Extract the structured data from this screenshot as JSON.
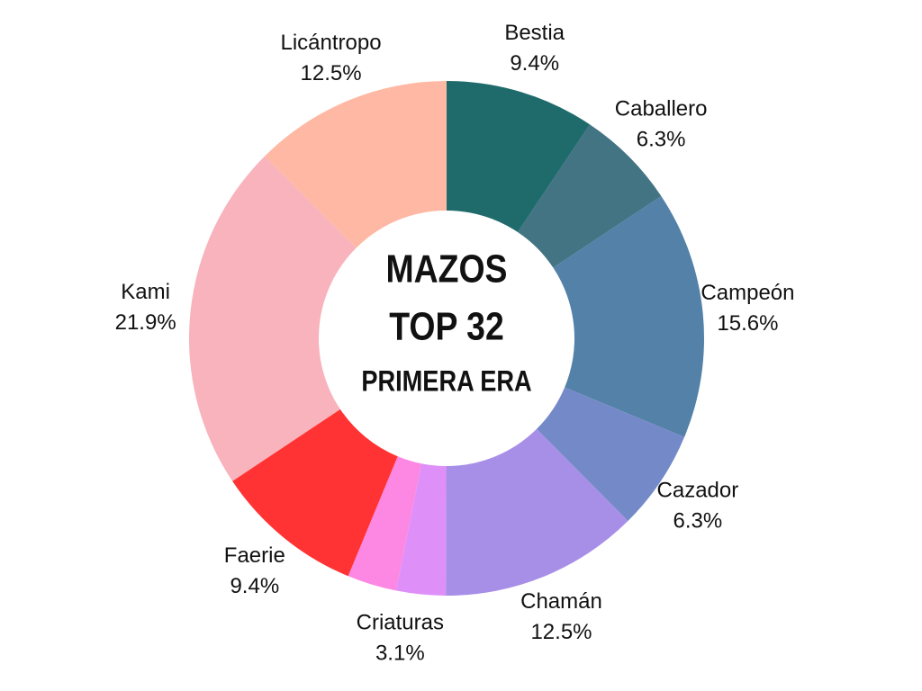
{
  "chart_data": {
    "type": "donut",
    "center_text": [
      "MAZOS",
      "TOP 32",
      "PRIMERA ERA"
    ],
    "categories": [
      "Bestia",
      "Caballero",
      "Campeón",
      "Cazador",
      "Chamán",
      "Criaturas",
      null,
      "Faerie",
      "Kami",
      "Licántropo"
    ],
    "values": [
      9.4,
      6.3,
      15.6,
      6.3,
      12.5,
      3.1,
      3.1,
      9.4,
      21.9,
      12.5
    ],
    "value_labels": [
      "9.4%",
      "6.3%",
      "15.6%",
      "6.3%",
      "12.5%",
      "3.1%",
      null,
      "9.4%",
      "21.9%",
      "12.5%"
    ],
    "colors": [
      "#1f6b6b",
      "#437484",
      "#5381a8",
      "#7489c8",
      "#a78fe8",
      "#df90f8",
      "#fd88e4",
      "#ff3333",
      "#f8b3bc",
      "#ffb8a4"
    ]
  }
}
